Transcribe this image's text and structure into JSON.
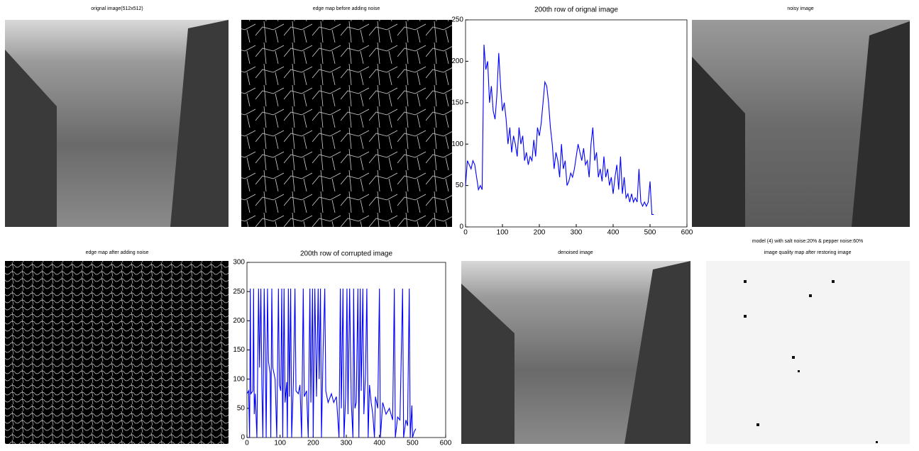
{
  "images": [
    {
      "title": "orignal image(512x512)"
    },
    {
      "title": "edge map before adding noise"
    },
    {
      "title": "noisy image"
    },
    {
      "title": "edge map after adding noise"
    },
    {
      "title": "denoised image"
    },
    {
      "heading": "model (4)  with salt noise:20% & pepper noise:60%",
      "title": "image quality map after restoring image"
    }
  ],
  "chart_data": [
    {
      "type": "line",
      "title": "200th row of orignal image",
      "xlim": [
        0,
        600
      ],
      "xticks": [
        0,
        100,
        200,
        300,
        400,
        500,
        600
      ],
      "ylim": [
        0,
        250
      ],
      "yticks": [
        0,
        50,
        100,
        150,
        200,
        250
      ],
      "series": [
        {
          "color": "#0000ff",
          "x": [
            0,
            5,
            10,
            15,
            20,
            25,
            30,
            35,
            40,
            45,
            50,
            55,
            60,
            65,
            70,
            75,
            80,
            85,
            90,
            95,
            100,
            105,
            110,
            115,
            120,
            125,
            130,
            135,
            140,
            145,
            150,
            155,
            160,
            165,
            170,
            175,
            180,
            185,
            190,
            195,
            200,
            205,
            210,
            215,
            220,
            225,
            230,
            235,
            240,
            245,
            250,
            255,
            260,
            265,
            270,
            275,
            280,
            285,
            290,
            295,
            300,
            305,
            310,
            315,
            320,
            325,
            330,
            335,
            340,
            345,
            350,
            355,
            360,
            365,
            370,
            375,
            380,
            385,
            390,
            395,
            400,
            405,
            410,
            415,
            420,
            425,
            430,
            435,
            440,
            445,
            450,
            455,
            460,
            465,
            470,
            475,
            480,
            485,
            490,
            495,
            500,
            505,
            510
          ],
          "values": [
            50,
            80,
            75,
            70,
            80,
            75,
            60,
            45,
            50,
            45,
            220,
            190,
            200,
            150,
            170,
            140,
            130,
            160,
            210,
            170,
            140,
            150,
            130,
            100,
            120,
            90,
            110,
            100,
            85,
            120,
            100,
            110,
            80,
            90,
            75,
            85,
            80,
            105,
            85,
            120,
            110,
            125,
            150,
            175,
            170,
            150,
            120,
            100,
            70,
            90,
            80,
            60,
            100,
            70,
            80,
            50,
            55,
            65,
            60,
            70,
            85,
            100,
            90,
            80,
            95,
            75,
            80,
            60,
            100,
            120,
            80,
            90,
            60,
            70,
            55,
            85,
            60,
            70,
            50,
            60,
            40,
            60,
            75,
            45,
            85,
            40,
            60,
            35,
            40,
            30,
            40,
            30,
            35,
            30,
            70,
            30,
            25,
            30,
            25,
            30,
            55,
            15,
            15
          ]
        }
      ]
    },
    {
      "type": "line",
      "title": "200th row of corrupted image",
      "xlim": [
        0,
        600
      ],
      "xticks": [
        0,
        100,
        200,
        300,
        400,
        500,
        600
      ],
      "ylim": [
        0,
        300
      ],
      "yticks": [
        0,
        50,
        100,
        150,
        200,
        250,
        300
      ],
      "series": [
        {
          "color": "#0000ff",
          "x": [
            0,
            5,
            8,
            10,
            12,
            18,
            20,
            22,
            25,
            30,
            35,
            38,
            42,
            45,
            48,
            52,
            55,
            58,
            62,
            65,
            70,
            72,
            75,
            78,
            85,
            90,
            95,
            98,
            102,
            105,
            108,
            112,
            115,
            120,
            122,
            125,
            128,
            132,
            135,
            140,
            145,
            148,
            155,
            160,
            165,
            170,
            173,
            180,
            185,
            190,
            193,
            198,
            200,
            205,
            210,
            215,
            218,
            222,
            225,
            230,
            235,
            238,
            245,
            255,
            262,
            270,
            278,
            282,
            285,
            290,
            293,
            298,
            302,
            305,
            310,
            315,
            320,
            322,
            326,
            330,
            335,
            338,
            342,
            345,
            350,
            353,
            358,
            362,
            366,
            370,
            375,
            380,
            385,
            388,
            395,
            400,
            403,
            410,
            420,
            430,
            440,
            445,
            448,
            455,
            462,
            470,
            473,
            480,
            485,
            490,
            493,
            498,
            500,
            505,
            510
          ],
          "values": [
            75,
            80,
            0,
            255,
            75,
            80,
            255,
            40,
            75,
            0,
            255,
            120,
            255,
            90,
            0,
            255,
            160,
            0,
            255,
            130,
            110,
            0,
            255,
            120,
            100,
            0,
            255,
            90,
            80,
            255,
            0,
            255,
            60,
            95,
            0,
            255,
            70,
            255,
            0,
            90,
            255,
            80,
            75,
            90,
            0,
            255,
            70,
            80,
            0,
            255,
            60,
            255,
            0,
            255,
            70,
            255,
            100,
            255,
            0,
            150,
            255,
            80,
            60,
            75,
            60,
            70,
            0,
            255,
            50,
            255,
            0,
            70,
            255,
            40,
            255,
            60,
            0,
            255,
            50,
            60,
            255,
            0,
            255,
            80,
            255,
            40,
            110,
            255,
            0,
            90,
            60,
            40,
            0,
            70,
            50,
            255,
            0,
            60,
            40,
            50,
            30,
            255,
            0,
            35,
            30,
            255,
            0,
            30,
            20,
            255,
            0,
            55,
            0,
            10,
            15
          ]
        }
      ]
    }
  ]
}
